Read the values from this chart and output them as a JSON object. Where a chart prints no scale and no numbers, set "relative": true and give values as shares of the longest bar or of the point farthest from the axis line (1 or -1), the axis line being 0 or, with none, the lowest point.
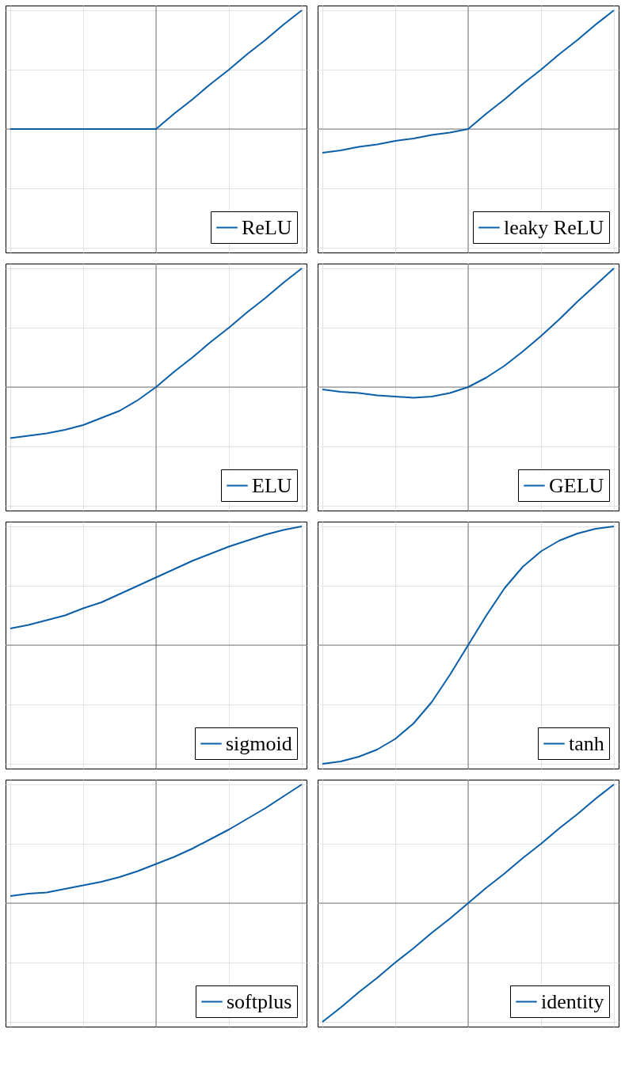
{
  "chart_data": [
    {
      "type": "line",
      "relative": true,
      "grid": true,
      "legend": "bottom right",
      "tick_labels": false,
      "categories": [
        null,
        null,
        null,
        null,
        null,
        null,
        null,
        null,
        null,
        null,
        null,
        null,
        null,
        null,
        null,
        null,
        null
      ],
      "series": [
        {
          "name": "ReLU",
          "color": "#0b5ea8",
          "values": [
            0,
            0,
            0,
            0,
            0,
            0,
            0,
            0,
            0,
            0.13,
            0.25,
            0.38,
            0.5,
            0.63,
            0.75,
            0.88,
            1
          ]
        }
      ]
    },
    {
      "type": "line",
      "relative": true,
      "grid": true,
      "legend": "bottom right",
      "tick_labels": false,
      "categories": [
        null,
        null,
        null,
        null,
        null,
        null,
        null,
        null,
        null,
        null,
        null,
        null,
        null,
        null,
        null,
        null,
        null
      ],
      "series": [
        {
          "name": "leaky ReLU",
          "color": "#0b5ea8",
          "values": [
            -0.2,
            -0.18,
            -0.15,
            -0.13,
            -0.1,
            -0.08,
            -0.05,
            -0.03,
            0,
            0.13,
            0.25,
            0.38,
            0.5,
            0.63,
            0.75,
            0.88,
            1
          ]
        }
      ]
    },
    {
      "type": "line",
      "relative": true,
      "grid": true,
      "legend": "bottom right",
      "tick_labels": false,
      "categories": [
        null,
        null,
        null,
        null,
        null,
        null,
        null,
        null,
        null,
        null,
        null,
        null,
        null,
        null,
        null,
        null,
        null
      ],
      "series": [
        {
          "name": "ELU",
          "color": "#0b5ea8",
          "values": [
            -0.43,
            -0.41,
            -0.39,
            -0.36,
            -0.32,
            -0.26,
            -0.2,
            -0.11,
            0,
            0.13,
            0.25,
            0.38,
            0.5,
            0.63,
            0.75,
            0.88,
            1
          ]
        }
      ]
    },
    {
      "type": "line",
      "relative": true,
      "grid": true,
      "legend": "bottom right",
      "tick_labels": false,
      "categories": [
        null,
        null,
        null,
        null,
        null,
        null,
        null,
        null,
        null,
        null,
        null,
        null,
        null,
        null,
        null,
        null,
        null
      ],
      "series": [
        {
          "name": "GELU",
          "color": "#0b5ea8",
          "values": [
            -0.02,
            -0.04,
            -0.05,
            -0.07,
            -0.08,
            -0.09,
            -0.08,
            -0.05,
            0,
            0.08,
            0.18,
            0.3,
            0.43,
            0.57,
            0.72,
            0.86,
            1
          ]
        }
      ]
    },
    {
      "type": "line",
      "relative": true,
      "grid": true,
      "legend": "bottom right",
      "tick_labels": false,
      "categories": [
        null,
        null,
        null,
        null,
        null,
        null,
        null,
        null,
        null,
        null,
        null,
        null,
        null,
        null,
        null,
        null,
        null
      ],
      "series": [
        {
          "name": "sigmoid",
          "color": "#0b5ea8",
          "values": [
            0.14,
            0.17,
            0.21,
            0.25,
            0.31,
            0.36,
            0.43,
            0.5,
            0.57,
            0.64,
            0.71,
            0.77,
            0.83,
            0.88,
            0.93,
            0.97,
            1
          ]
        }
      ]
    },
    {
      "type": "line",
      "relative": true,
      "grid": true,
      "legend": "bottom right",
      "tick_labels": false,
      "categories": [
        null,
        null,
        null,
        null,
        null,
        null,
        null,
        null,
        null,
        null,
        null,
        null,
        null,
        null,
        null,
        null,
        null
      ],
      "series": [
        {
          "name": "tanh",
          "color": "#0b5ea8",
          "values": [
            -1,
            -0.98,
            -0.94,
            -0.88,
            -0.79,
            -0.66,
            -0.48,
            -0.25,
            0,
            0.25,
            0.48,
            0.66,
            0.79,
            0.88,
            0.94,
            0.98,
            1
          ]
        }
      ]
    },
    {
      "type": "line",
      "relative": true,
      "grid": true,
      "legend": "bottom right",
      "tick_labels": false,
      "categories": [
        null,
        null,
        null,
        null,
        null,
        null,
        null,
        null,
        null,
        null,
        null,
        null,
        null,
        null,
        null,
        null,
        null
      ],
      "series": [
        {
          "name": "softplus",
          "color": "#0b5ea8",
          "values": [
            0.06,
            0.08,
            0.09,
            0.12,
            0.15,
            0.18,
            0.22,
            0.27,
            0.33,
            0.39,
            0.46,
            0.54,
            0.62,
            0.71,
            0.8,
            0.9,
            1
          ]
        }
      ]
    },
    {
      "type": "line",
      "relative": true,
      "grid": true,
      "legend": "bottom right",
      "tick_labels": false,
      "categories": [
        null,
        null,
        null,
        null,
        null,
        null,
        null,
        null,
        null,
        null,
        null,
        null,
        null,
        null,
        null,
        null,
        null
      ],
      "series": [
        {
          "name": "identity",
          "color": "#0b5ea8",
          "values": [
            -1,
            -0.88,
            -0.75,
            -0.63,
            -0.5,
            -0.38,
            -0.25,
            -0.13,
            0,
            0.13,
            0.25,
            0.38,
            0.5,
            0.63,
            0.75,
            0.88,
            1
          ]
        }
      ]
    }
  ]
}
